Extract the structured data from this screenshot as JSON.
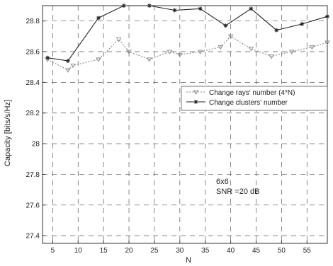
{
  "chart_data": {
    "type": "line",
    "title": "",
    "xlabel": "N",
    "ylabel": "Capacity [bits/s/Hz]",
    "xlim": [
      3,
      59
    ],
    "ylim": [
      27.35,
      28.9
    ],
    "xticks": [
      5,
      10,
      15,
      20,
      25,
      30,
      35,
      40,
      45,
      50,
      55
    ],
    "xtick_labels": [
      "5",
      "10",
      "15",
      "20",
      "25",
      "30",
      "35",
      "40",
      "45",
      "50",
      "55"
    ],
    "yticks": [
      27.4,
      27.6,
      27.8,
      28.0,
      28.2,
      28.4,
      28.6,
      28.8
    ],
    "ytick_labels": [
      "27.4",
      "27.6",
      "27.8",
      "28",
      "28.2",
      "28.4",
      "28.6",
      "28.8"
    ],
    "grid": true,
    "legend_position": "center-right",
    "annotations": [
      "6x6",
      "SNR =20 dB"
    ],
    "series": [
      {
        "name": "Change rays' number (4*N)",
        "marker": "triangle",
        "color": "#888888",
        "dash": "2,2",
        "x": [
          4,
          8,
          9,
          14,
          18,
          20,
          24,
          28,
          30,
          34,
          38,
          40,
          44,
          48,
          52,
          56,
          59
        ],
        "y": [
          28.55,
          28.48,
          28.51,
          28.55,
          28.68,
          28.6,
          28.55,
          28.6,
          28.58,
          28.6,
          28.63,
          28.7,
          28.62,
          28.57,
          28.6,
          28.63,
          28.66
        ]
      },
      {
        "name": "Change clusters' number",
        "marker": "star",
        "color": "#222222",
        "dash": "",
        "x": [
          4,
          8,
          14,
          19,
          24,
          29,
          34,
          39,
          44,
          49,
          54,
          59
        ],
        "y": [
          28.56,
          28.54,
          28.82,
          28.9,
          28.9,
          28.87,
          28.88,
          28.77,
          28.88,
          28.74,
          28.78,
          28.83
        ]
      }
    ]
  }
}
